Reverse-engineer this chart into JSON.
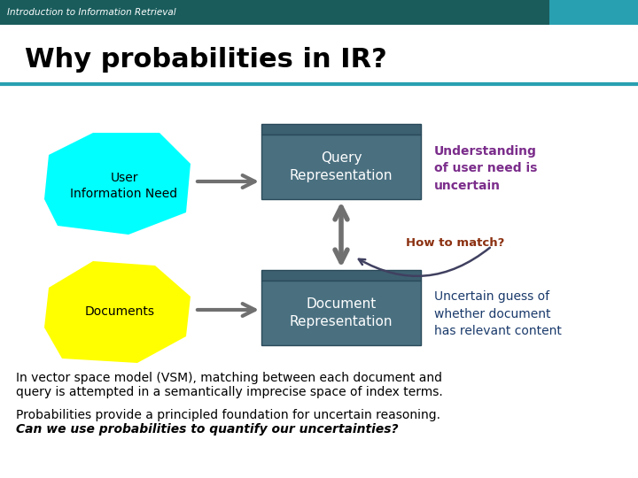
{
  "title": "Why probabilities in IR?",
  "header_text": "Introduction to Information Retrieval",
  "header_bg": "#1a5c5c",
  "header_right_bg": "#29a0b1",
  "title_color": "#000000",
  "title_underline_color": "#29a0b1",
  "bg_color": "#ffffff",
  "user_blob_color": "#00ffff",
  "doc_blob_color": "#ffff00",
  "box_top_color": "#3d6070",
  "box_body_color": "#4a7080",
  "box_text_color": "#ffffff",
  "arrow_color": "#707070",
  "understanding_color": "#7b2d8b",
  "how_to_match_color": "#8b3010",
  "uncertain_guess_color": "#1a3a6b",
  "body_text_color": "#000000",
  "user_blob_label": "User\nInformation Need",
  "doc_blob_label": "Documents",
  "query_box_label": "Query\nRepresentation",
  "doc_box_label": "Document\nRepresentation",
  "understanding_text": "Understanding\nof user need is\nuncertain",
  "how_to_match_text": "How to match?",
  "uncertain_guess_text": "Uncertain guess of\nwhether document\nhas relevant content",
  "body_line1": "In vector space model (VSM), matching between each document and",
  "body_line2": "query is attempted in a semantically imprecise space of index terms.",
  "body_line3": "Probabilities provide a principled foundation for uncertain reasoning.",
  "body_line4": "Can we use probabilities to quantify our uncertainties?"
}
